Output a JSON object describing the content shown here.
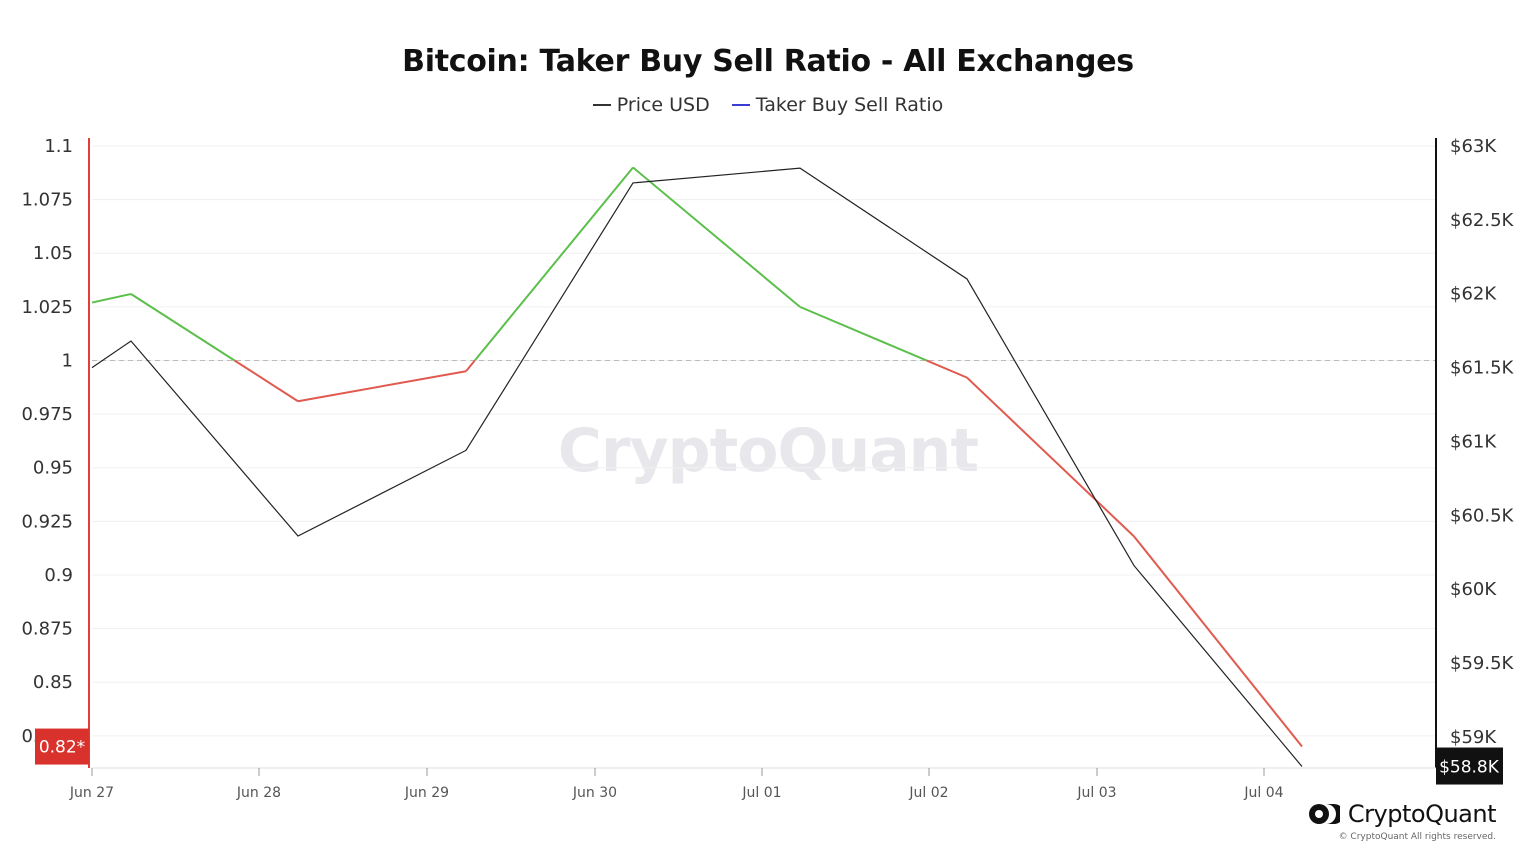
{
  "chart_data": {
    "type": "line",
    "title": "Bitcoin: Taker Buy Sell Ratio - All Exchanges",
    "legend": [
      {
        "name": "Price USD",
        "color": "#333333"
      },
      {
        "name": "Taker Buy Sell Ratio",
        "color": "#3b3bd6"
      }
    ],
    "x_ticks": [
      "Jun 27",
      "Jun 28",
      "Jun 29",
      "Jun 30",
      "Jul 01",
      "Jul 02",
      "Jul 03",
      "Jul 04"
    ],
    "y_left": {
      "ticks": [
        "1.1",
        "1.075",
        "1.05",
        "1.025",
        "1",
        "0.975",
        "0.95",
        "0.925",
        "0.9",
        "0.875",
        "0.85",
        "0.825"
      ],
      "range": [
        0.81,
        1.1
      ],
      "current_label": "0.82*",
      "current_value": 0.82,
      "reference_line": 1
    },
    "y_right": {
      "ticks": [
        "$63K",
        "$62.5K",
        "$62K",
        "$61.5K",
        "$61K",
        "$60.5K",
        "$60K",
        "$59.5K",
        "$59K"
      ],
      "range": [
        58.79,
        63.0
      ],
      "current_label": "$58.8K",
      "current_value": 58.8
    },
    "x": [
      "Jun 27",
      "Jun 27",
      "Jun 28",
      "Jun 29",
      "Jun 30",
      "Jul 01",
      "Jul 02",
      "Jul 03",
      "Jul 04"
    ],
    "series": [
      {
        "name": "Price USD",
        "unit": "K USD",
        "color": "#222222",
        "values": [
          61.5,
          61.68,
          60.36,
          60.94,
          62.75,
          62.85,
          62.1,
          60.16,
          58.8
        ]
      },
      {
        "name": "Taker Buy Sell Ratio",
        "color_above": "#5cbf4c",
        "color_below": "#e05a50",
        "values": [
          1.027,
          1.031,
          0.981,
          0.995,
          1.09,
          1.025,
          0.992,
          0.918,
          0.82
        ]
      }
    ],
    "grid": true
  },
  "watermark": "CryptoQuant",
  "brand": {
    "name": "CryptoQuant",
    "copyright": "© CryptoQuant All rights reserved."
  }
}
